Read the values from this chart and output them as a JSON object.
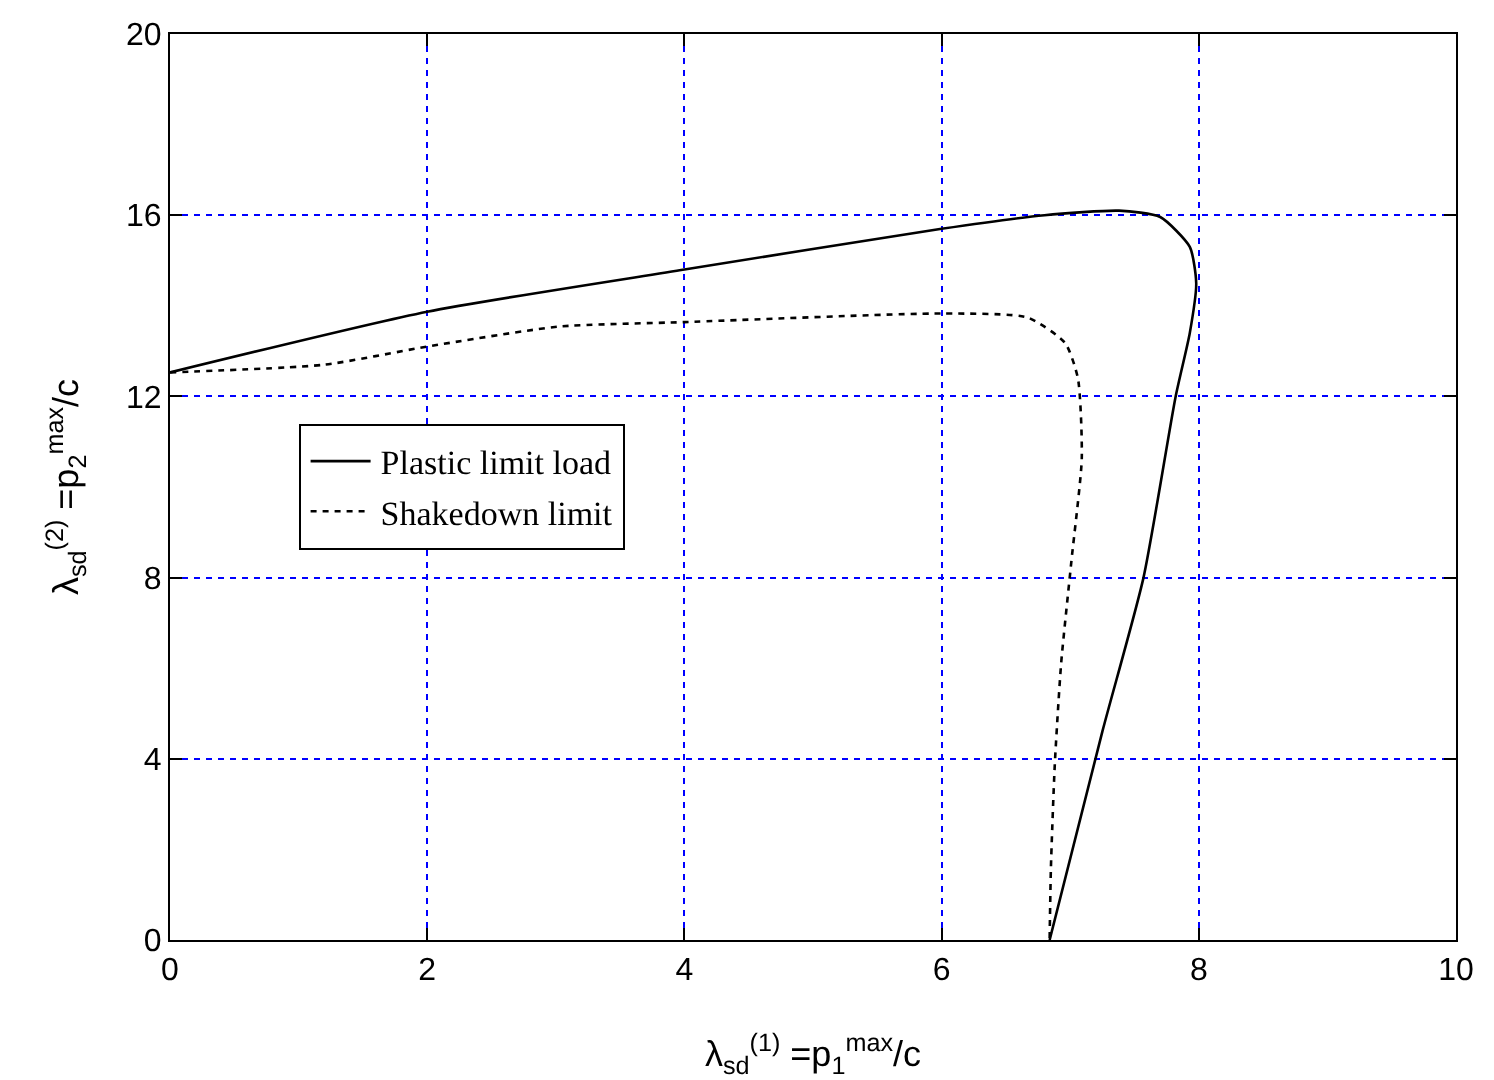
{
  "chart_data": {
    "type": "line",
    "xlabel": "λ$_{sd}$$^{(1)}$ =p$_{1}$$^{max}$/c",
    "ylabel": "λ$_{sd}$$^{(2)}$ =p$_{2}$$^{max}$/c",
    "xlim": [
      0,
      10
    ],
    "xticks": [
      0,
      2,
      4,
      6,
      8,
      10
    ],
    "ylim": [
      0,
      20
    ],
    "yticks": [
      0,
      4,
      8,
      12,
      16,
      20
    ],
    "grid": true,
    "legend": "left",
    "series": [
      {
        "name": "Plastic limit load",
        "color": "#000000",
        "line_style": "solid",
        "x": [
          0,
          2,
          4,
          6,
          6.8,
          7.38,
          7.7,
          7.93,
          7.98,
          7.93,
          7.82,
          7.57,
          7.25,
          6.84
        ],
        "values": [
          12.53,
          13.87,
          14.8,
          15.7,
          16.0,
          16.1,
          15.96,
          15.3,
          14.5,
          13.4,
          12,
          8,
          4.6,
          0
        ]
      },
      {
        "name": "Shakedown limit",
        "color": "#000000",
        "line_style": "dotted",
        "x": [
          0,
          1.2,
          2,
          3.02,
          4,
          6,
          6.67,
          6.96,
          7.06,
          7.09,
          7.01,
          6.93,
          6.88,
          6.85,
          6.84
        ],
        "values": [
          12.53,
          12.7,
          13.1,
          13.54,
          13.64,
          13.83,
          13.74,
          13.18,
          12.4,
          10.63,
          8.38,
          6.12,
          3.86,
          1.6,
          0
        ]
      }
    ]
  }
}
